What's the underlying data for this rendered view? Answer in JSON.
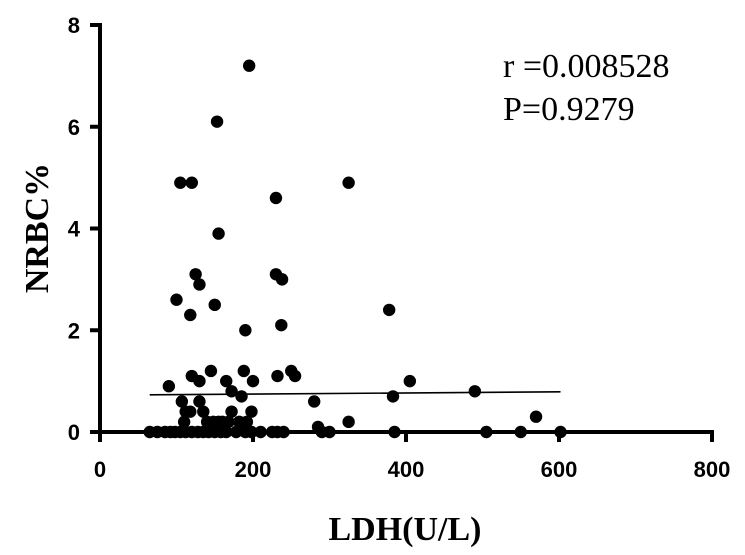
{
  "chart_data": {
    "type": "scatter",
    "xlabel": "LDH(U/L)",
    "ylabel": "NRBC%",
    "xlim": [
      0,
      800
    ],
    "ylim": [
      0,
      8
    ],
    "xticks": [
      "0",
      "200",
      "400",
      "600",
      "800"
    ],
    "yticks": [
      "0",
      "2",
      "4",
      "6",
      "8"
    ],
    "grid": false,
    "annotations": [
      "r =0.008528",
      "P=0.9279"
    ],
    "points": [
      [
        195,
        7.2
      ],
      [
        153,
        6.1
      ],
      [
        105,
        4.9
      ],
      [
        120,
        4.9
      ],
      [
        230,
        4.6
      ],
      [
        325,
        4.9
      ],
      [
        155,
        3.9
      ],
      [
        125,
        3.1
      ],
      [
        130,
        2.9
      ],
      [
        230,
        3.1
      ],
      [
        238,
        3.0
      ],
      [
        100,
        2.6
      ],
      [
        150,
        2.5
      ],
      [
        118,
        2.3
      ],
      [
        190,
        2.0
      ],
      [
        237,
        2.1
      ],
      [
        378,
        2.4
      ],
      [
        90,
        0.9
      ],
      [
        120,
        1.1
      ],
      [
        130,
        1.0
      ],
      [
        145,
        1.2
      ],
      [
        165,
        1.0
      ],
      [
        172,
        0.8
      ],
      [
        188,
        1.2
      ],
      [
        200,
        1.0
      ],
      [
        232,
        1.1
      ],
      [
        250,
        1.2
      ],
      [
        255,
        1.1
      ],
      [
        185,
        0.7
      ],
      [
        107,
        0.6
      ],
      [
        112,
        0.4
      ],
      [
        118,
        0.4
      ],
      [
        130,
        0.6
      ],
      [
        135,
        0.4
      ],
      [
        140,
        0.2
      ],
      [
        148,
        0.2
      ],
      [
        155,
        0.2
      ],
      [
        160,
        0.2
      ],
      [
        168,
        0.2
      ],
      [
        172,
        0.4
      ],
      [
        182,
        0.2
      ],
      [
        192,
        0.2
      ],
      [
        198,
        0.4
      ],
      [
        110,
        0.2
      ],
      [
        280,
        0.6
      ],
      [
        285,
        0.1
      ],
      [
        325,
        0.2
      ],
      [
        383,
        0.7
      ],
      [
        405,
        1.0
      ],
      [
        490,
        0.8
      ],
      [
        570,
        0.3
      ],
      [
        65,
        0.0
      ],
      [
        75,
        0.0
      ],
      [
        85,
        0.0
      ],
      [
        92,
        0.0
      ],
      [
        98,
        0.0
      ],
      [
        105,
        0.0
      ],
      [
        112,
        0.0
      ],
      [
        120,
        0.0
      ],
      [
        128,
        0.0
      ],
      [
        135,
        0.0
      ],
      [
        142,
        0.0
      ],
      [
        150,
        0.0
      ],
      [
        158,
        0.0
      ],
      [
        165,
        0.0
      ],
      [
        178,
        0.0
      ],
      [
        190,
        0.0
      ],
      [
        198,
        0.0
      ],
      [
        210,
        0.0
      ],
      [
        225,
        0.0
      ],
      [
        232,
        0.0
      ],
      [
        240,
        0.0
      ],
      [
        290,
        0.0
      ],
      [
        300,
        0.0
      ],
      [
        385,
        0.0
      ],
      [
        505,
        0.0
      ],
      [
        550,
        0.0
      ],
      [
        602,
        0.0
      ]
    ],
    "fit_line": {
      "x": [
        65,
        602
      ],
      "y": [
        0.73,
        0.79
      ]
    }
  }
}
